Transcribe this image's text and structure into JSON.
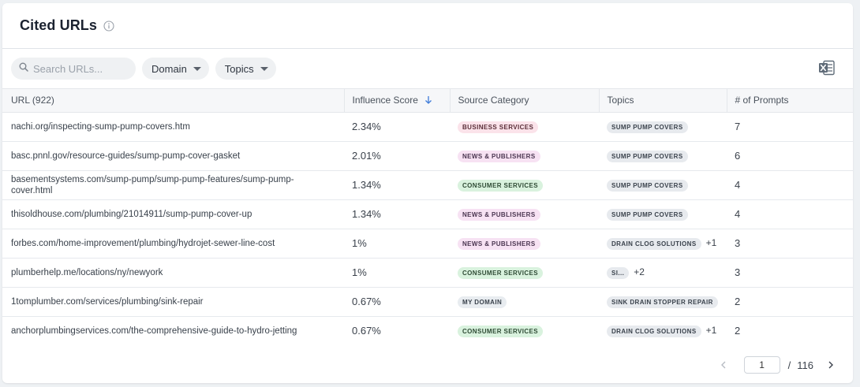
{
  "header": {
    "title": "Cited URLs"
  },
  "toolbar": {
    "search_placeholder": "Search URLs...",
    "domain_label": "Domain",
    "topics_label": "Topics"
  },
  "table": {
    "columns": [
      "URL (922)",
      "Influence Score",
      "Source Category",
      "Topics",
      "# of Prompts"
    ],
    "rows": [
      {
        "url": "nachi.org/inspecting-sump-pump-covers.htm",
        "score": "2.34%",
        "category": "BUSINESS SERVICES",
        "topic": "SUMP PUMP COVERS",
        "extra": "",
        "prompts": "7"
      },
      {
        "url": "basc.pnnl.gov/resource-guides/sump-pump-cover-gasket",
        "score": "2.01%",
        "category": "NEWS & PUBLISHERS",
        "topic": "SUMP PUMP COVERS",
        "extra": "",
        "prompts": "6"
      },
      {
        "url": "basementsystems.com/sump-pump/sump-pump-features/sump-pump-cover.html",
        "score": "1.34%",
        "category": "CONSUMER SERVICES",
        "topic": "SUMP PUMP COVERS",
        "extra": "",
        "prompts": "4"
      },
      {
        "url": "thisoldhouse.com/plumbing/21014911/sump-pump-cover-up",
        "score": "1.34%",
        "category": "NEWS & PUBLISHERS",
        "topic": "SUMP PUMP COVERS",
        "extra": "",
        "prompts": "4"
      },
      {
        "url": "forbes.com/home-improvement/plumbing/hydrojet-sewer-line-cost",
        "score": "1%",
        "category": "NEWS & PUBLISHERS",
        "topic": "DRAIN CLOG SOLUTIONS",
        "extra": "+1",
        "prompts": "3"
      },
      {
        "url": "plumberhelp.me/locations/ny/newyork",
        "score": "1%",
        "category": "CONSUMER SERVICES",
        "topic": "SI...",
        "extra": "+2",
        "prompts": "3"
      },
      {
        "url": "1tomplumber.com/services/plumbing/sink-repair",
        "score": "0.67%",
        "category": "MY DOMAIN",
        "topic": "SINK DRAIN STOPPER REPAIR",
        "extra": "",
        "prompts": "2"
      },
      {
        "url": "anchorplumbingservices.com/the-comprehensive-guide-to-hydro-jetting",
        "score": "0.67%",
        "category": "CONSUMER SERVICES",
        "topic": "DRAIN CLOG SOLUTIONS",
        "extra": "+1",
        "prompts": "2"
      }
    ]
  },
  "pagination": {
    "current": "1",
    "separator": "/",
    "total": "116"
  },
  "colors": {
    "accent": "#3d7bd9",
    "excel_icon": "#5f6b78"
  },
  "icons": [
    "info-icon",
    "search-icon",
    "excel-export-icon",
    "sort-down-icon",
    "chevron-left-icon",
    "chevron-right-icon"
  ]
}
